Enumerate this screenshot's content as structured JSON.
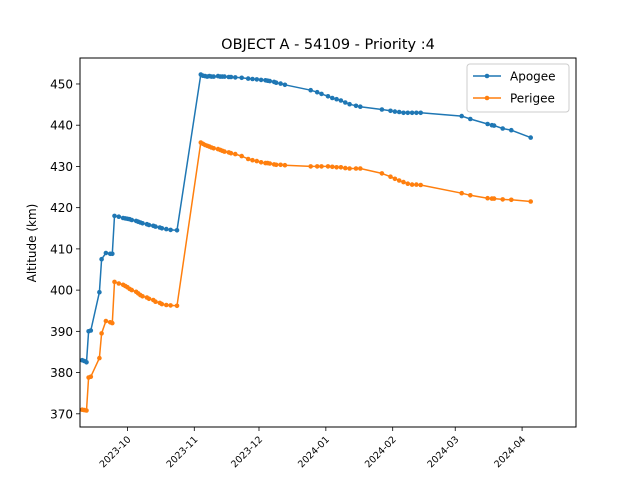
{
  "chart_data": {
    "type": "line",
    "title": "OBJECT A - 54109 - Priority :4",
    "xlabel": "",
    "ylabel": "Altitude (km)",
    "xlim": [
      "2023-09-09",
      "2024-04-26"
    ],
    "ylim": [
      366.8,
      456.3
    ],
    "yticks": [
      370,
      380,
      390,
      400,
      410,
      420,
      430,
      440,
      450
    ],
    "xticks": [
      "2023-10",
      "2023-11",
      "2023-12",
      "2024-01",
      "2024-02",
      "2024-03",
      "2024-04"
    ],
    "legend": "top-right",
    "grid": false,
    "series": [
      {
        "name": "Apogee",
        "color": "#1f77b4",
        "points": [
          [
            "2023-09-10",
            383.0
          ],
          [
            "2023-09-11",
            382.8
          ],
          [
            "2023-09-12",
            382.5
          ],
          [
            "2023-09-13",
            390.0
          ],
          [
            "2023-09-14",
            390.2
          ],
          [
            "2023-09-18",
            399.5
          ],
          [
            "2023-09-19",
            407.5
          ],
          [
            "2023-09-21",
            409.0
          ],
          [
            "2023-09-23",
            408.8
          ],
          [
            "2023-09-24",
            408.8
          ],
          [
            "2023-09-25",
            418.0
          ],
          [
            "2023-09-27",
            417.8
          ],
          [
            "2023-09-29",
            417.5
          ],
          [
            "2023-09-30",
            417.4
          ],
          [
            "2023-10-01",
            417.3
          ],
          [
            "2023-10-02",
            417.2
          ],
          [
            "2023-10-03",
            417.0
          ],
          [
            "2023-10-05",
            416.8
          ],
          [
            "2023-10-06",
            416.6
          ],
          [
            "2023-10-07",
            416.4
          ],
          [
            "2023-10-08",
            416.2
          ],
          [
            "2023-10-10",
            416.0
          ],
          [
            "2023-10-11",
            415.8
          ],
          [
            "2023-10-13",
            415.6
          ],
          [
            "2023-10-14",
            415.4
          ],
          [
            "2023-10-16",
            415.2
          ],
          [
            "2023-10-17",
            415.0
          ],
          [
            "2023-10-19",
            414.8
          ],
          [
            "2023-10-21",
            414.6
          ],
          [
            "2023-10-24",
            414.5
          ],
          [
            "2023-11-04",
            452.3
          ],
          [
            "2023-11-05",
            452.0
          ],
          [
            "2023-11-06",
            451.9
          ],
          [
            "2023-11-07",
            451.8
          ],
          [
            "2023-11-08",
            451.9
          ],
          [
            "2023-11-09",
            451.8
          ],
          [
            "2023-11-10",
            451.8
          ],
          [
            "2023-11-12",
            451.9
          ],
          [
            "2023-11-13",
            451.8
          ],
          [
            "2023-11-14",
            451.8
          ],
          [
            "2023-11-15",
            451.8
          ],
          [
            "2023-11-17",
            451.7
          ],
          [
            "2023-11-18",
            451.7
          ],
          [
            "2023-11-20",
            451.6
          ],
          [
            "2023-11-23",
            451.5
          ],
          [
            "2023-11-26",
            451.3
          ],
          [
            "2023-11-28",
            451.2
          ],
          [
            "2023-11-30",
            451.1
          ],
          [
            "2023-12-02",
            451.0
          ],
          [
            "2023-12-04",
            450.9
          ],
          [
            "2023-12-05",
            450.8
          ],
          [
            "2023-12-06",
            450.7
          ],
          [
            "2023-12-08",
            450.5
          ],
          [
            "2023-12-09",
            450.3
          ],
          [
            "2023-12-11",
            450.1
          ],
          [
            "2023-12-13",
            449.8
          ],
          [
            "2023-12-25",
            448.5
          ],
          [
            "2023-12-28",
            448.0
          ],
          [
            "2023-12-30",
            447.6
          ],
          [
            "2024-01-02",
            447.0
          ],
          [
            "2024-01-04",
            446.6
          ],
          [
            "2024-01-06",
            446.3
          ],
          [
            "2024-01-08",
            446.0
          ],
          [
            "2024-01-10",
            445.5
          ],
          [
            "2024-01-12",
            445.1
          ],
          [
            "2024-01-15",
            444.7
          ],
          [
            "2024-01-17",
            444.5
          ],
          [
            "2024-01-27",
            443.8
          ],
          [
            "2024-01-31",
            443.5
          ],
          [
            "2024-02-02",
            443.3
          ],
          [
            "2024-02-04",
            443.2
          ],
          [
            "2024-02-06",
            443.0
          ],
          [
            "2024-02-08",
            443.0
          ],
          [
            "2024-02-10",
            443.0
          ],
          [
            "2024-02-12",
            443.0
          ],
          [
            "2024-02-14",
            443.0
          ],
          [
            "2024-03-04",
            442.2
          ],
          [
            "2024-03-08",
            441.5
          ],
          [
            "2024-03-16",
            440.3
          ],
          [
            "2024-03-18",
            440.0
          ],
          [
            "2024-03-19",
            439.9
          ],
          [
            "2024-03-23",
            439.2
          ],
          [
            "2024-03-27",
            438.8
          ],
          [
            "2024-04-05",
            437.0
          ]
        ]
      },
      {
        "name": "Perigee",
        "color": "#ff7f0e",
        "points": [
          [
            "2023-09-10",
            371.0
          ],
          [
            "2023-09-11",
            370.9
          ],
          [
            "2023-09-12",
            370.8
          ],
          [
            "2023-09-13",
            378.8
          ],
          [
            "2023-09-14",
            379.0
          ],
          [
            "2023-09-18",
            383.5
          ],
          [
            "2023-09-19",
            389.5
          ],
          [
            "2023-09-21",
            392.5
          ],
          [
            "2023-09-23",
            392.2
          ],
          [
            "2023-09-24",
            392.0
          ],
          [
            "2023-09-25",
            402.0
          ],
          [
            "2023-09-27",
            401.6
          ],
          [
            "2023-09-29",
            401.3
          ],
          [
            "2023-09-30",
            401.0
          ],
          [
            "2023-10-01",
            400.7
          ],
          [
            "2023-10-02",
            400.3
          ],
          [
            "2023-10-03",
            400.0
          ],
          [
            "2023-10-05",
            399.6
          ],
          [
            "2023-10-06",
            399.2
          ],
          [
            "2023-10-07",
            398.8
          ],
          [
            "2023-10-08",
            398.5
          ],
          [
            "2023-10-10",
            398.2
          ],
          [
            "2023-10-11",
            397.9
          ],
          [
            "2023-10-13",
            397.6
          ],
          [
            "2023-10-14",
            397.2
          ],
          [
            "2023-10-16",
            396.9
          ],
          [
            "2023-10-17",
            396.6
          ],
          [
            "2023-10-19",
            396.4
          ],
          [
            "2023-10-21",
            396.3
          ],
          [
            "2023-10-24",
            396.2
          ],
          [
            "2023-11-04",
            435.8
          ],
          [
            "2023-11-05",
            435.5
          ],
          [
            "2023-11-06",
            435.2
          ],
          [
            "2023-11-07",
            435.0
          ],
          [
            "2023-11-08",
            434.8
          ],
          [
            "2023-11-09",
            434.6
          ],
          [
            "2023-11-10",
            434.4
          ],
          [
            "2023-11-12",
            434.2
          ],
          [
            "2023-11-13",
            434.0
          ],
          [
            "2023-11-14",
            433.8
          ],
          [
            "2023-11-15",
            433.6
          ],
          [
            "2023-11-17",
            433.4
          ],
          [
            "2023-11-18",
            433.2
          ],
          [
            "2023-11-20",
            433.0
          ],
          [
            "2023-11-23",
            432.5
          ],
          [
            "2023-11-26",
            431.8
          ],
          [
            "2023-11-28",
            431.5
          ],
          [
            "2023-11-30",
            431.3
          ],
          [
            "2023-12-02",
            431.0
          ],
          [
            "2023-12-04",
            430.8
          ],
          [
            "2023-12-05",
            430.8
          ],
          [
            "2023-12-06",
            430.7
          ],
          [
            "2023-12-08",
            430.5
          ],
          [
            "2023-12-09",
            430.4
          ],
          [
            "2023-12-11",
            430.4
          ],
          [
            "2023-12-13",
            430.3
          ],
          [
            "2023-12-25",
            430.0
          ],
          [
            "2023-12-28",
            430.0
          ],
          [
            "2023-12-30",
            430.0
          ],
          [
            "2024-01-02",
            430.0
          ],
          [
            "2024-01-04",
            429.9
          ],
          [
            "2024-01-06",
            429.8
          ],
          [
            "2024-01-08",
            429.8
          ],
          [
            "2024-01-10",
            429.6
          ],
          [
            "2024-01-12",
            429.5
          ],
          [
            "2024-01-15",
            429.5
          ],
          [
            "2024-01-17",
            429.5
          ],
          [
            "2024-01-27",
            428.3
          ],
          [
            "2024-01-31",
            427.5
          ],
          [
            "2024-02-02",
            427.0
          ],
          [
            "2024-02-04",
            426.6
          ],
          [
            "2024-02-06",
            426.2
          ],
          [
            "2024-02-08",
            425.8
          ],
          [
            "2024-02-10",
            425.6
          ],
          [
            "2024-02-12",
            425.6
          ],
          [
            "2024-02-14",
            425.5
          ],
          [
            "2024-03-04",
            423.5
          ],
          [
            "2024-03-08",
            423.0
          ],
          [
            "2024-03-16",
            422.3
          ],
          [
            "2024-03-18",
            422.2
          ],
          [
            "2024-03-19",
            422.2
          ],
          [
            "2024-03-23",
            422.0
          ],
          [
            "2024-03-27",
            421.9
          ],
          [
            "2024-04-05",
            421.5
          ]
        ]
      }
    ]
  }
}
